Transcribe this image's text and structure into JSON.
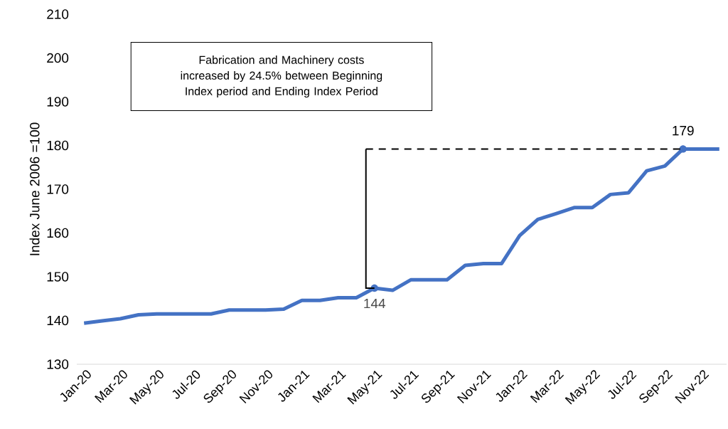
{
  "chart_data": {
    "type": "line",
    "ylabel": "Index June 2006 =100",
    "categories": [
      "Jan-20",
      null,
      "Mar-20",
      null,
      "May-20",
      null,
      "Jul-20",
      null,
      "Sep-20",
      null,
      "Nov-20",
      null,
      "Jan-21",
      null,
      "Mar-21",
      null,
      "May-21",
      null,
      "Jul-21",
      null,
      "Sep-21",
      null,
      "Nov-21",
      null,
      "Jan-22",
      null,
      "Mar-22",
      null,
      "May-22",
      null,
      "Jul-22",
      null,
      "Sep-22",
      null,
      "Nov-22",
      null
    ],
    "series": [
      {
        "color": "#4472c4",
        "values": [
          139.4,
          139.9,
          140.4,
          141.3,
          141.5,
          141.5,
          141.5,
          141.5,
          142.4,
          142.4,
          142.4,
          142.6,
          144.6,
          144.6,
          145.2,
          145.2,
          147.4,
          146.9,
          149.3,
          149.3,
          149.3,
          152.6,
          153.0,
          153.0,
          159.4,
          163.1,
          164.4,
          165.8,
          165.8,
          168.8,
          169.2,
          174.2,
          175.3,
          179.2,
          179.2,
          179.2
        ]
      }
    ],
    "ylim": [
      130,
      210
    ],
    "yticks": [
      130,
      140,
      150,
      160,
      170,
      180,
      190,
      200,
      210
    ],
    "grid": false,
    "marker": "none",
    "line_style": "solid",
    "annotations": [
      "Fabrication and Machinery costs increased by 24.5% between Beginning Index period and Ending Index Period",
      {
        "text": "144",
        "x": "May-21",
        "y": 147.4
      },
      {
        "text": "179",
        "y": 179.2
      }
    ]
  }
}
